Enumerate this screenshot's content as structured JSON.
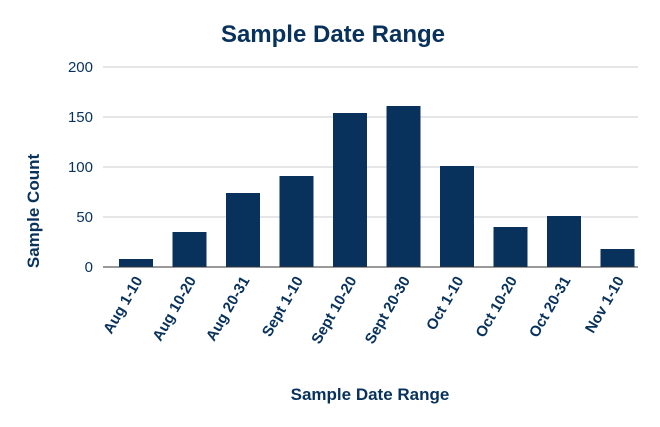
{
  "chart_data": {
    "type": "bar",
    "title": "Sample Date Range",
    "xlabel": "Sample Date Range",
    "ylabel": "Sample Count",
    "categories": [
      "Aug 1-10",
      "Aug 10-20",
      "Aug 20-31",
      "Sept 1-10",
      "Sept 10-20",
      "Sept 20-30",
      "Oct 1-10",
      "Oct 10-20",
      "Oct 20-31",
      "Nov 1-10"
    ],
    "values": [
      8,
      35,
      74,
      91,
      154,
      161,
      101,
      40,
      51,
      18
    ],
    "ylim": [
      0,
      200
    ],
    "yticks": [
      "0",
      "50",
      "100",
      "150",
      "200"
    ],
    "grid": true,
    "legend": "none",
    "colors": {
      "bar": "#08325c",
      "title": "#08325c",
      "axis_text": "#08325c",
      "grid": "#cccccc",
      "axis_line": "#333333"
    }
  }
}
